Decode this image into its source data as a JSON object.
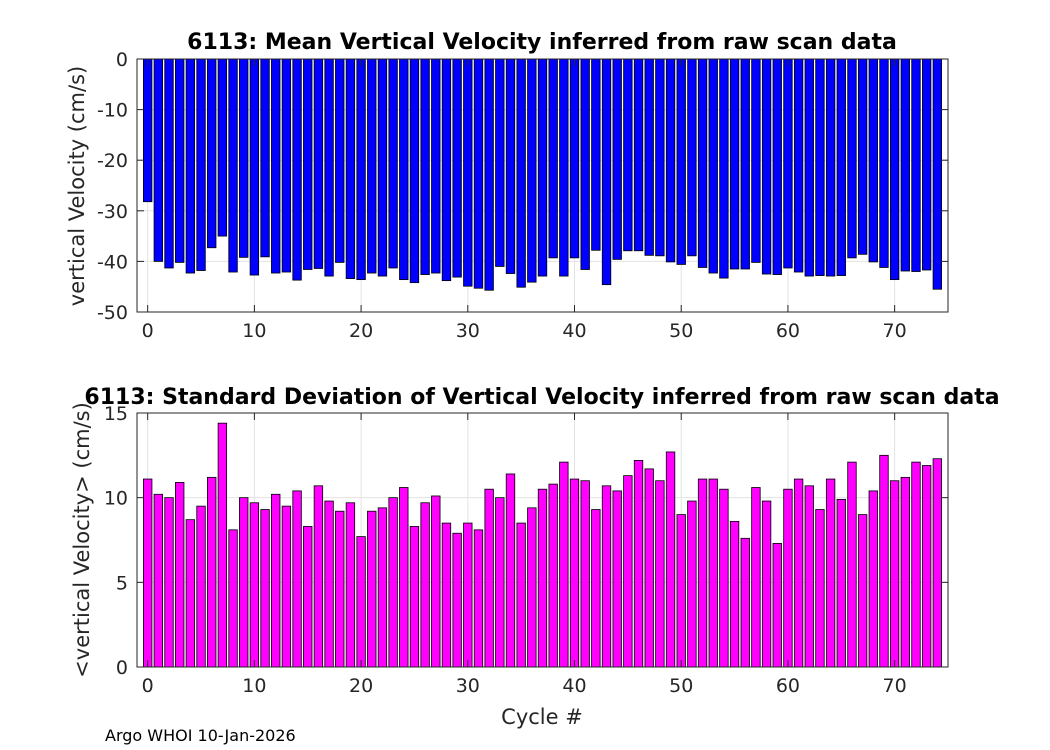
{
  "chart_data": [
    {
      "type": "bar",
      "title": "6113: Mean Vertical Velocity inferred from raw scan data",
      "xlabel": "",
      "ylabel": "vertical Velocity (cm/s)",
      "xlim": [
        -1,
        75
      ],
      "ylim": [
        -50,
        0
      ],
      "xticks": [
        0,
        10,
        20,
        30,
        40,
        50,
        60,
        70
      ],
      "yticks": [
        -50,
        -40,
        -30,
        -20,
        -10,
        0
      ],
      "grid": true,
      "bar_color": "#0000ff",
      "x": [
        0,
        1,
        2,
        3,
        4,
        5,
        6,
        7,
        8,
        9,
        10,
        11,
        12,
        13,
        14,
        15,
        16,
        17,
        18,
        19,
        20,
        21,
        22,
        23,
        24,
        25,
        26,
        27,
        28,
        29,
        30,
        31,
        32,
        33,
        34,
        35,
        36,
        37,
        38,
        39,
        40,
        41,
        42,
        43,
        44,
        45,
        46,
        47,
        48,
        49,
        50,
        51,
        52,
        53,
        54,
        55,
        56,
        57,
        58,
        59,
        60,
        61,
        62,
        63,
        64,
        65,
        66,
        67,
        68,
        69,
        70,
        71,
        72,
        73,
        74
      ],
      "values": [
        -28.2,
        -40.0,
        -41.3,
        -40.2,
        -42.3,
        -41.8,
        -37.3,
        -35.0,
        -42.1,
        -39.2,
        -42.7,
        -39.1,
        -42.3,
        -42.1,
        -43.7,
        -41.6,
        -41.4,
        -42.9,
        -40.2,
        -43.4,
        -43.6,
        -42.3,
        -42.9,
        -41.3,
        -43.6,
        -44.2,
        -42.6,
        -42.3,
        -43.8,
        -43.1,
        -44.9,
        -45.3,
        -45.7,
        -41.0,
        -42.4,
        -45.1,
        -44.1,
        -42.9,
        -39.3,
        -42.9,
        -39.3,
        -41.6,
        -37.8,
        -44.6,
        -39.6,
        -37.9,
        -37.9,
        -38.8,
        -38.9,
        -40.1,
        -40.6,
        -38.9,
        -41.2,
        -42.3,
        -43.3,
        -41.5,
        -41.5,
        -40.2,
        -42.5,
        -42.6,
        -41.3,
        -42.1,
        -42.9,
        -42.8,
        -42.9,
        -42.8,
        -39.3,
        -38.6,
        -40.1,
        -41.2,
        -43.6,
        -41.9,
        -42.0,
        -41.7,
        -45.5
      ]
    },
    {
      "type": "bar",
      "title": "6113: Standard Deviation of Vertical Velocity inferred from raw scan data",
      "xlabel": "Cycle #",
      "ylabel": "<vertical Velocity> (cm/s)",
      "xlim": [
        -1,
        75
      ],
      "ylim": [
        0,
        15
      ],
      "xticks": [
        0,
        10,
        20,
        30,
        40,
        50,
        60,
        70
      ],
      "yticks": [
        0,
        5,
        10,
        15
      ],
      "grid": true,
      "bar_color": "#ff00ff",
      "x": [
        0,
        1,
        2,
        3,
        4,
        5,
        6,
        7,
        8,
        9,
        10,
        11,
        12,
        13,
        14,
        15,
        16,
        17,
        18,
        19,
        20,
        21,
        22,
        23,
        24,
        25,
        26,
        27,
        28,
        29,
        30,
        31,
        32,
        33,
        34,
        35,
        36,
        37,
        38,
        39,
        40,
        41,
        42,
        43,
        44,
        45,
        46,
        47,
        48,
        49,
        50,
        51,
        52,
        53,
        54,
        55,
        56,
        57,
        58,
        59,
        60,
        61,
        62,
        63,
        64,
        65,
        66,
        67,
        68,
        69,
        70,
        71,
        72,
        73,
        74
      ],
      "values": [
        11.1,
        10.2,
        10.0,
        10.9,
        8.7,
        9.5,
        11.2,
        14.4,
        8.1,
        10.0,
        9.7,
        9.3,
        10.2,
        9.5,
        10.4,
        8.3,
        10.7,
        9.8,
        9.2,
        9.7,
        7.7,
        9.2,
        9.4,
        10.0,
        10.6,
        8.3,
        9.7,
        10.1,
        8.5,
        7.9,
        8.5,
        8.1,
        10.5,
        10.0,
        11.4,
        8.5,
        9.4,
        10.5,
        10.8,
        12.1,
        11.1,
        11.0,
        9.3,
        10.7,
        10.4,
        11.3,
        12.2,
        11.7,
        11.0,
        12.7,
        9.0,
        9.8,
        11.1,
        11.1,
        10.5,
        8.6,
        7.6,
        10.6,
        9.8,
        7.3,
        10.5,
        11.1,
        10.7,
        9.3,
        11.1,
        9.9,
        12.1,
        9.0,
        10.4,
        12.5,
        11.0,
        11.2,
        12.1,
        11.9,
        12.3
      ]
    }
  ],
  "footer": "Argo WHOI 10-Jan-2026"
}
